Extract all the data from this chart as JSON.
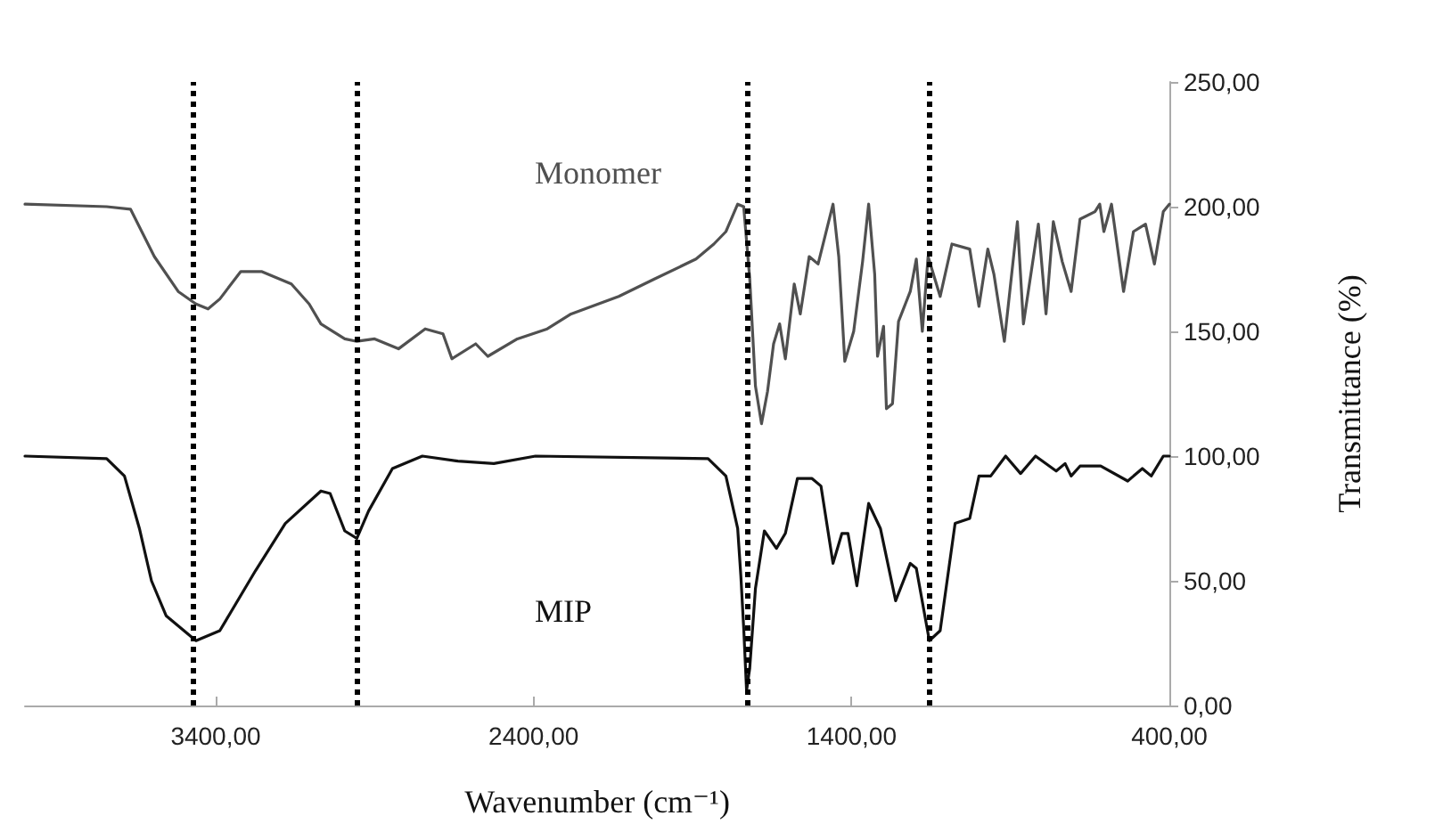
{
  "chart_data": {
    "type": "line",
    "xlabel": "Wavenumber (cm⁻¹)",
    "ylabel": "Transmittance (%)",
    "xlim": [
      4000,
      400
    ],
    "ylim": [
      0,
      250
    ],
    "xticks": [
      {
        "value": 3400,
        "label": "3400,00"
      },
      {
        "value": 2400,
        "label": "2400,00"
      },
      {
        "value": 1400,
        "label": "1400,00"
      },
      {
        "value": 400,
        "label": "400,00"
      }
    ],
    "yticks": [
      {
        "value": 0,
        "label": "0,00"
      },
      {
        "value": 50,
        "label": "50,00"
      },
      {
        "value": 100,
        "label": "100,00"
      },
      {
        "value": 150,
        "label": "150,00"
      },
      {
        "value": 200,
        "label": "200,00"
      },
      {
        "value": 250,
        "label": "250,00"
      }
    ],
    "grid": false,
    "legend": false,
    "marker": "none",
    "line_style": "solid",
    "series": [
      {
        "name": "Monomer",
        "color": "#505050",
        "x": [
          4000,
          3743,
          3668,
          3593,
          3518,
          3462,
          3424,
          3387,
          3321,
          3256,
          3162,
          3106,
          3069,
          2994,
          2956,
          2900,
          2825,
          2741,
          2685,
          2657,
          2582,
          2544,
          2451,
          2357,
          2282,
          2132,
          2020,
          1889,
          1833,
          1795,
          1758,
          1739,
          1720,
          1702,
          1683,
          1664,
          1645,
          1626,
          1608,
          1580,
          1561,
          1533,
          1505,
          1458,
          1440,
          1421,
          1393,
          1365,
          1346,
          1327,
          1318,
          1299,
          1290,
          1271,
          1252,
          1215,
          1196,
          1177,
          1159,
          1121,
          1084,
          1028,
          999,
          971,
          952,
          919,
          878,
          859,
          812,
          788,
          765,
          737,
          709,
          681,
          634,
          619,
          606,
          582,
          544,
          513,
          475,
          447,
          419,
          400
        ],
        "values": [
          201,
          200,
          199,
          180,
          166,
          161,
          159,
          163,
          174,
          174,
          169,
          161,
          153,
          147,
          146,
          147,
          143,
          151,
          149,
          139,
          145,
          140,
          147,
          151,
          157,
          164,
          171,
          179,
          185,
          190,
          201,
          200,
          171,
          128,
          113,
          126,
          145,
          153,
          139,
          169,
          157,
          180,
          177,
          201,
          180,
          138,
          150,
          178,
          201,
          173,
          140,
          152,
          119,
          121,
          154,
          166,
          179,
          150,
          180,
          164,
          185,
          183,
          160,
          183,
          173,
          146,
          194,
          153,
          193,
          157,
          194,
          178,
          166,
          195,
          198,
          201,
          190,
          201,
          166,
          190,
          193,
          177,
          198,
          201
        ]
      },
      {
        "name": "MIP",
        "color": "#111111",
        "x": [
          4000,
          3743,
          3687,
          3640,
          3602,
          3556,
          3462,
          3387,
          3275,
          3181,
          3069,
          3040,
          2994,
          2956,
          2919,
          2844,
          2750,
          2638,
          2525,
          2394,
          1851,
          1795,
          1758,
          1748,
          1739,
          1730,
          1720,
          1702,
          1674,
          1636,
          1608,
          1570,
          1524,
          1496,
          1458,
          1430,
          1411,
          1383,
          1346,
          1309,
          1261,
          1215,
          1196,
          1155,
          1121,
          1074,
          1028,
          999,
          962,
          915,
          868,
          821,
          756,
          728,
          709,
          681,
          616,
          531,
          485,
          457,
          419,
          400
        ],
        "values": [
          100,
          99,
          92,
          71,
          50,
          36,
          26,
          30,
          54,
          73,
          86,
          85,
          70,
          67,
          78,
          95,
          100,
          98,
          97,
          100,
          99,
          92,
          71,
          52,
          31,
          6,
          15,
          47,
          70,
          63,
          69,
          91,
          91,
          88,
          57,
          69,
          69,
          48,
          81,
          71,
          42,
          57,
          55,
          26,
          30,
          73,
          75,
          92,
          92,
          100,
          93,
          100,
          94,
          97,
          92,
          96,
          96,
          90,
          95,
          92,
          100,
          100
        ]
      }
    ],
    "ref_lines": [
      {
        "axis": "x",
        "value": 3470,
        "color": "#000000",
        "line_style": "dotted"
      },
      {
        "axis": "x",
        "value": 2955,
        "color": "#000000",
        "line_style": "dotted"
      },
      {
        "axis": "x",
        "value": 1730,
        "color": "#000000",
        "line_style": "dotted"
      },
      {
        "axis": "x",
        "value": 1155,
        "color": "#000000",
        "line_style": "dotted"
      }
    ]
  }
}
